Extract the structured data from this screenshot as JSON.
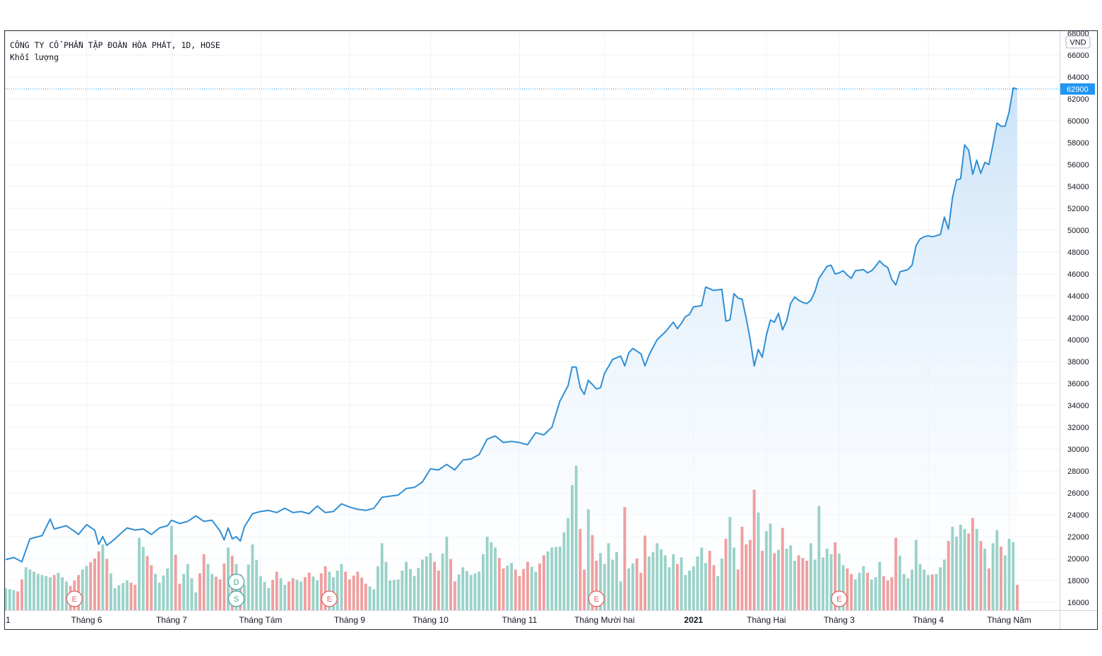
{
  "legend": {
    "title": "CÔNG TY CỔ PHẦN TẬP ĐOÀN HÒA PHÁT, 1D, HOSE",
    "volume_label": "Khối lượng"
  },
  "chart_data": {
    "type": "area",
    "currency_label": "VND",
    "last_price_label": "62900",
    "last_price": 62900,
    "ylim": [
      15000,
      68000
    ],
    "y_ticks": [
      16000,
      18000,
      20000,
      22000,
      24000,
      26000,
      28000,
      30000,
      32000,
      34000,
      36000,
      38000,
      40000,
      42000,
      44000,
      46000,
      48000,
      50000,
      52000,
      54000,
      56000,
      58000,
      60000,
      62000,
      64000,
      66000,
      68000
    ],
    "y_tick_labels": [
      "16000",
      "18000",
      "20000",
      "22000",
      "24000",
      "26000",
      "28000",
      "30000",
      "32000",
      "34000",
      "36000",
      "38000",
      "40000",
      "42000",
      "44000",
      "46000",
      "48000",
      "50000",
      "52000",
      "54000",
      "56000",
      "58000",
      "60000",
      "62000",
      "64000",
      "66000",
      "68000"
    ],
    "x_ticks": [
      {
        "label": "1",
        "index": 0
      },
      {
        "label": "Tháng 6",
        "index": 20
      },
      {
        "label": "Tháng 7",
        "index": 41
      },
      {
        "label": "Tháng Tám",
        "index": 63
      },
      {
        "label": "Tháng 9",
        "index": 85
      },
      {
        "label": "Tháng 10",
        "index": 105
      },
      {
        "label": "Tháng 11",
        "index": 127
      },
      {
        "label": "Tháng Mười hai",
        "index": 148
      },
      {
        "label": "2021",
        "index": 170,
        "bold": true
      },
      {
        "label": "Tháng Hai",
        "index": 188
      },
      {
        "label": "Tháng 3",
        "index": 206
      },
      {
        "label": "Tháng 4",
        "index": 228
      },
      {
        "label": "Tháng Năm",
        "index": 248
      }
    ],
    "events": [
      {
        "letter": "E",
        "index": 17,
        "row": "lower",
        "kind": "earnings"
      },
      {
        "letter": "D",
        "index": 57,
        "row": "upper",
        "kind": "dividend"
      },
      {
        "letter": "S",
        "index": 57,
        "row": "lower",
        "kind": "split"
      },
      {
        "letter": "E",
        "index": 80,
        "row": "lower",
        "kind": "earnings"
      },
      {
        "letter": "E",
        "index": 146,
        "row": "lower",
        "kind": "earnings"
      },
      {
        "letter": "E",
        "index": 206,
        "row": "lower",
        "kind": "earnings"
      }
    ],
    "price_anchors": [
      [
        0,
        19900
      ],
      [
        2,
        20100
      ],
      [
        4,
        19700
      ],
      [
        6,
        21800
      ],
      [
        9,
        22100
      ],
      [
        11,
        23600
      ],
      [
        12,
        22700
      ],
      [
        15,
        23000
      ],
      [
        17,
        22500
      ],
      [
        18,
        22200
      ],
      [
        20,
        23100
      ],
      [
        22,
        22600
      ],
      [
        23,
        21300
      ],
      [
        24,
        22000
      ],
      [
        25,
        21200
      ],
      [
        27,
        21800
      ],
      [
        30,
        22800
      ],
      [
        32,
        22600
      ],
      [
        34,
        22700
      ],
      [
        36,
        22200
      ],
      [
        38,
        22800
      ],
      [
        40,
        23000
      ],
      [
        41,
        23500
      ],
      [
        43,
        23200
      ],
      [
        45,
        23400
      ],
      [
        47,
        23900
      ],
      [
        49,
        23400
      ],
      [
        51,
        23500
      ],
      [
        53,
        22500
      ],
      [
        54,
        21700
      ],
      [
        55,
        22800
      ],
      [
        56,
        21800
      ],
      [
        57,
        22000
      ],
      [
        58,
        21600
      ],
      [
        59,
        22900
      ],
      [
        61,
        24100
      ],
      [
        63,
        24300
      ],
      [
        65,
        24400
      ],
      [
        67,
        24200
      ],
      [
        69,
        24600
      ],
      [
        71,
        24200
      ],
      [
        73,
        24300
      ],
      [
        75,
        24100
      ],
      [
        77,
        24800
      ],
      [
        79,
        24200
      ],
      [
        81,
        24300
      ],
      [
        83,
        25000
      ],
      [
        85,
        24700
      ],
      [
        87,
        24500
      ],
      [
        89,
        24400
      ],
      [
        91,
        24600
      ],
      [
        93,
        25600
      ],
      [
        95,
        25700
      ],
      [
        97,
        25800
      ],
      [
        99,
        26400
      ],
      [
        101,
        26500
      ],
      [
        103,
        27000
      ],
      [
        105,
        28200
      ],
      [
        107,
        28100
      ],
      [
        109,
        28600
      ],
      [
        111,
        28100
      ],
      [
        113,
        29000
      ],
      [
        115,
        29100
      ],
      [
        117,
        29500
      ],
      [
        119,
        30900
      ],
      [
        121,
        31200
      ],
      [
        123,
        30600
      ],
      [
        125,
        30700
      ],
      [
        127,
        30600
      ],
      [
        129,
        30400
      ],
      [
        131,
        31500
      ],
      [
        133,
        31300
      ],
      [
        135,
        32000
      ],
      [
        137,
        34400
      ],
      [
        139,
        35800
      ],
      [
        140,
        37500
      ],
      [
        141,
        37500
      ],
      [
        142,
        35600
      ],
      [
        143,
        35000
      ],
      [
        144,
        36300
      ],
      [
        146,
        35500
      ],
      [
        147,
        35600
      ],
      [
        148,
        36900
      ],
      [
        150,
        38200
      ],
      [
        152,
        38500
      ],
      [
        153,
        37600
      ],
      [
        154,
        38800
      ],
      [
        155,
        39200
      ],
      [
        157,
        38700
      ],
      [
        158,
        37600
      ],
      [
        159,
        38600
      ],
      [
        161,
        40000
      ],
      [
        163,
        40700
      ],
      [
        165,
        41600
      ],
      [
        166,
        41000
      ],
      [
        167,
        41500
      ],
      [
        168,
        42100
      ],
      [
        169,
        42300
      ],
      [
        170,
        43000
      ],
      [
        172,
        43100
      ],
      [
        173,
        44800
      ],
      [
        175,
        44500
      ],
      [
        177,
        44600
      ],
      [
        178,
        41700
      ],
      [
        179,
        41800
      ],
      [
        180,
        44200
      ],
      [
        181,
        43800
      ],
      [
        182,
        43700
      ],
      [
        183,
        42000
      ],
      [
        184,
        40000
      ],
      [
        185,
        37600
      ],
      [
        186,
        39100
      ],
      [
        187,
        38400
      ],
      [
        188,
        40400
      ],
      [
        189,
        41800
      ],
      [
        190,
        41600
      ],
      [
        191,
        42400
      ],
      [
        192,
        40900
      ],
      [
        193,
        41700
      ],
      [
        194,
        43300
      ],
      [
        195,
        43900
      ],
      [
        196,
        43600
      ],
      [
        197,
        43400
      ],
      [
        198,
        43300
      ],
      [
        199,
        43600
      ],
      [
        200,
        44400
      ],
      [
        201,
        45600
      ],
      [
        203,
        46700
      ],
      [
        204,
        46800
      ],
      [
        205,
        46000
      ],
      [
        206,
        46100
      ],
      [
        207,
        46300
      ],
      [
        208,
        45900
      ],
      [
        209,
        45600
      ],
      [
        210,
        46300
      ],
      [
        212,
        46400
      ],
      [
        213,
        46100
      ],
      [
        214,
        46300
      ],
      [
        215,
        46700
      ],
      [
        216,
        47200
      ],
      [
        217,
        46800
      ],
      [
        218,
        46600
      ],
      [
        219,
        45500
      ],
      [
        220,
        45000
      ],
      [
        221,
        46200
      ],
      [
        223,
        46400
      ],
      [
        224,
        46800
      ],
      [
        225,
        48600
      ],
      [
        226,
        49200
      ],
      [
        227,
        49400
      ],
      [
        228,
        49500
      ],
      [
        229,
        49400
      ],
      [
        230,
        49500
      ],
      [
        231,
        49600
      ],
      [
        232,
        51200
      ],
      [
        233,
        50100
      ],
      [
        234,
        53000
      ],
      [
        235,
        54600
      ],
      [
        236,
        54700
      ],
      [
        237,
        57800
      ],
      [
        238,
        57300
      ],
      [
        239,
        55100
      ],
      [
        240,
        56400
      ],
      [
        241,
        55200
      ],
      [
        242,
        56200
      ],
      [
        243,
        56000
      ],
      [
        244,
        57800
      ],
      [
        245,
        59800
      ],
      [
        246,
        59500
      ],
      [
        247,
        59500
      ],
      [
        248,
        60800
      ],
      [
        249,
        63000
      ],
      [
        250,
        62900
      ]
    ],
    "volume_anchors": [
      [
        0,
        17300
      ],
      [
        3,
        17000
      ],
      [
        5,
        19200
      ],
      [
        8,
        18600
      ],
      [
        11,
        18300
      ],
      [
        13,
        18700
      ],
      [
        16,
        17500
      ],
      [
        19,
        19000
      ],
      [
        22,
        20000
      ],
      [
        24,
        21300
      ],
      [
        27,
        17300
      ],
      [
        30,
        18000
      ],
      [
        32,
        17600
      ],
      [
        33,
        21900
      ],
      [
        36,
        19400
      ],
      [
        38,
        17800
      ],
      [
        40,
        19100
      ],
      [
        41,
        23000
      ],
      [
        43,
        17700
      ],
      [
        45,
        19500
      ],
      [
        47,
        16900
      ],
      [
        49,
        20400
      ],
      [
        51,
        18600
      ],
      [
        53,
        18100
      ],
      [
        55,
        21000
      ],
      [
        57,
        19500
      ],
      [
        59,
        17600
      ],
      [
        61,
        21300
      ],
      [
        63,
        18400
      ],
      [
        65,
        17300
      ],
      [
        67,
        18800
      ],
      [
        69,
        17600
      ],
      [
        71,
        18200
      ],
      [
        73,
        17900
      ],
      [
        75,
        18700
      ],
      [
        77,
        18000
      ],
      [
        79,
        19300
      ],
      [
        81,
        18300
      ],
      [
        83,
        19500
      ],
      [
        85,
        18100
      ],
      [
        87,
        18800
      ],
      [
        89,
        17700
      ],
      [
        91,
        17200
      ],
      [
        93,
        21400
      ],
      [
        95,
        18000
      ],
      [
        97,
        18100
      ],
      [
        99,
        19700
      ],
      [
        101,
        18400
      ],
      [
        103,
        19900
      ],
      [
        105,
        20500
      ],
      [
        107,
        18900
      ],
      [
        109,
        22000
      ],
      [
        111,
        17900
      ],
      [
        113,
        19200
      ],
      [
        115,
        18500
      ],
      [
        117,
        18800
      ],
      [
        119,
        22000
      ],
      [
        121,
        21000
      ],
      [
        123,
        19100
      ],
      [
        125,
        19600
      ],
      [
        127,
        18400
      ],
      [
        129,
        19700
      ],
      [
        131,
        18800
      ],
      [
        133,
        20300
      ],
      [
        135,
        21000
      ],
      [
        137,
        21100
      ],
      [
        139,
        23700
      ],
      [
        140,
        26700
      ],
      [
        141,
        28500
      ],
      [
        142,
        22700
      ],
      [
        143,
        19000
      ],
      [
        144,
        24500
      ],
      [
        146,
        19800
      ],
      [
        147,
        20500
      ],
      [
        148,
        19500
      ],
      [
        149,
        21400
      ],
      [
        150,
        19900
      ],
      [
        151,
        20600
      ],
      [
        152,
        17900
      ],
      [
        153,
        24700
      ],
      [
        154,
        19100
      ],
      [
        156,
        20000
      ],
      [
        157,
        18700
      ],
      [
        158,
        22100
      ],
      [
        159,
        20200
      ],
      [
        160,
        20600
      ],
      [
        161,
        21400
      ],
      [
        163,
        20300
      ],
      [
        164,
        19200
      ],
      [
        165,
        20400
      ],
      [
        166,
        19500
      ],
      [
        167,
        20100
      ],
      [
        168,
        18500
      ],
      [
        170,
        19300
      ],
      [
        171,
        20200
      ],
      [
        172,
        21000
      ],
      [
        173,
        19600
      ],
      [
        174,
        20700
      ],
      [
        175,
        19400
      ],
      [
        176,
        18400
      ],
      [
        177,
        20000
      ],
      [
        178,
        21800
      ],
      [
        179,
        23800
      ],
      [
        180,
        21000
      ],
      [
        181,
        19000
      ],
      [
        182,
        22900
      ],
      [
        183,
        21300
      ],
      [
        184,
        21700
      ],
      [
        185,
        26300
      ],
      [
        186,
        24200
      ],
      [
        187,
        20700
      ],
      [
        188,
        22500
      ],
      [
        189,
        23200
      ],
      [
        190,
        20500
      ],
      [
        191,
        20800
      ],
      [
        192,
        22800
      ],
      [
        193,
        20900
      ],
      [
        194,
        21200
      ],
      [
        195,
        19800
      ],
      [
        196,
        20300
      ],
      [
        198,
        19800
      ],
      [
        199,
        21400
      ],
      [
        200,
        19900
      ],
      [
        201,
        24800
      ],
      [
        202,
        20100
      ],
      [
        203,
        20900
      ],
      [
        204,
        20400
      ],
      [
        205,
        21500
      ],
      [
        207,
        19400
      ],
      [
        208,
        19100
      ],
      [
        210,
        18100
      ],
      [
        212,
        19300
      ],
      [
        214,
        18100
      ],
      [
        215,
        18300
      ],
      [
        216,
        19700
      ],
      [
        217,
        18400
      ],
      [
        218,
        18000
      ],
      [
        219,
        18300
      ],
      [
        220,
        21900
      ],
      [
        222,
        18600
      ],
      [
        223,
        18200
      ],
      [
        224,
        19000
      ],
      [
        225,
        21700
      ],
      [
        226,
        19500
      ],
      [
        228,
        18500
      ],
      [
        230,
        18600
      ],
      [
        231,
        19200
      ],
      [
        232,
        19900
      ],
      [
        233,
        21600
      ],
      [
        234,
        22900
      ],
      [
        235,
        22000
      ],
      [
        236,
        23100
      ],
      [
        237,
        22700
      ],
      [
        238,
        22300
      ],
      [
        239,
        23700
      ],
      [
        240,
        22700
      ],
      [
        241,
        21600
      ],
      [
        242,
        20900
      ],
      [
        243,
        19100
      ],
      [
        244,
        21400
      ],
      [
        245,
        22600
      ],
      [
        246,
        21100
      ],
      [
        247,
        20300
      ],
      [
        248,
        21800
      ],
      [
        249,
        21500
      ],
      [
        250,
        17600
      ]
    ],
    "colors": {
      "line": "#2f8fd6",
      "area_top": "#c8e1f8",
      "area_bottom": "#ffffff",
      "volume_up": "#9ad2c8",
      "volume_down": "#ef9f9f",
      "price_tag_bg": "#2196f3",
      "grid": "#eef0f3",
      "earnings": "#e06060",
      "dividend_split": "#3fa99f"
    }
  }
}
